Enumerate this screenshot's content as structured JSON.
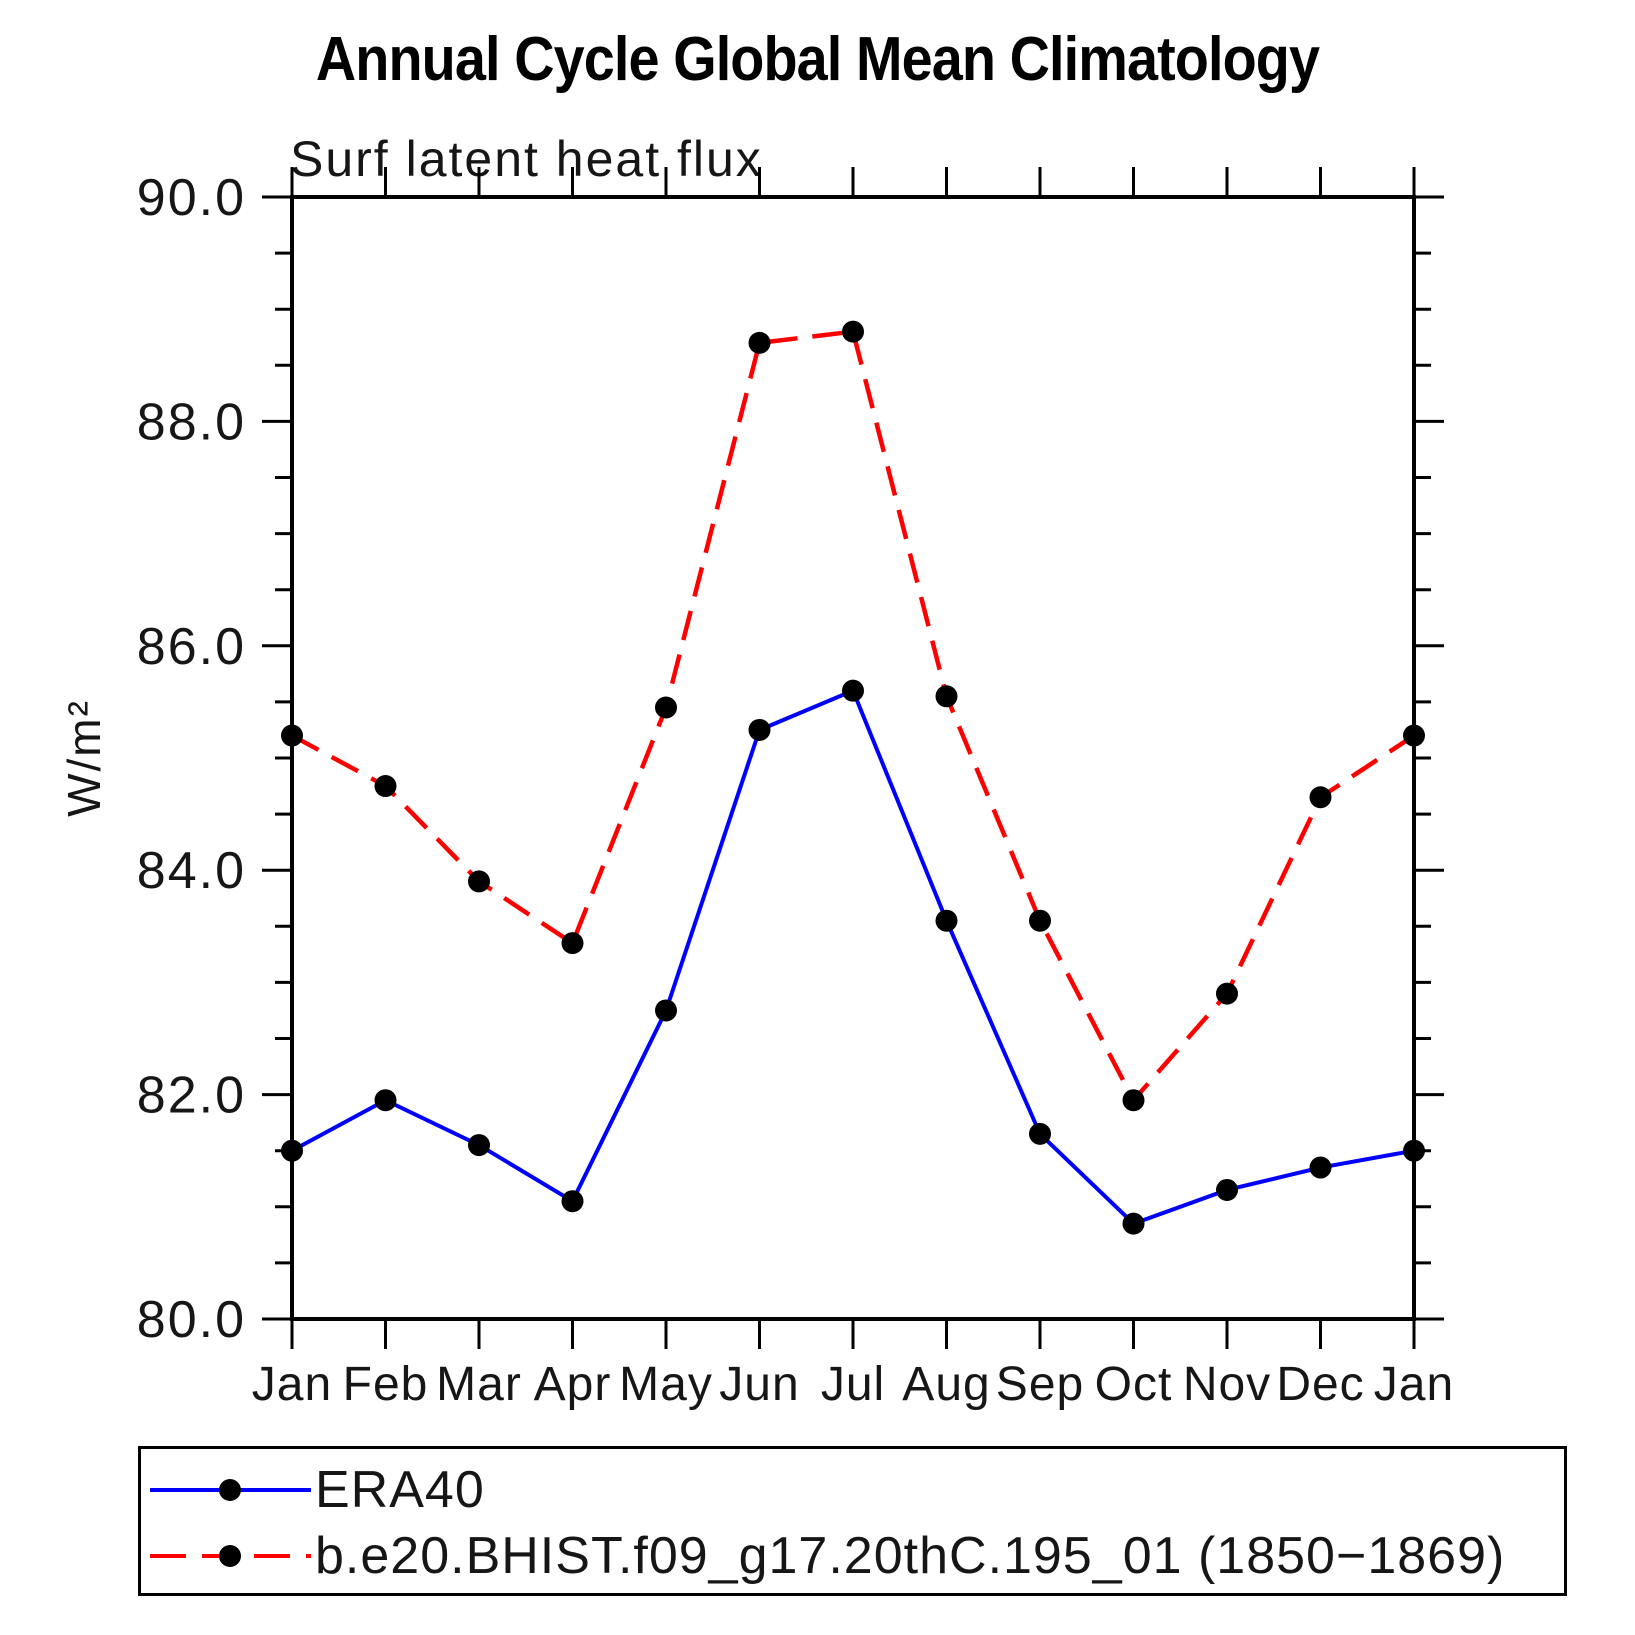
{
  "chart_data": {
    "type": "line",
    "title": "Annual Cycle Global Mean Climatology",
    "subtitle": "Surf latent heat flux",
    "ylabel": "W/m²",
    "xlabel": "",
    "categories": [
      "Jan",
      "Feb",
      "Mar",
      "Apr",
      "May",
      "Jun",
      "Jul",
      "Aug",
      "Sep",
      "Oct",
      "Nov",
      "Dec",
      "Jan"
    ],
    "ylim": [
      80.0,
      90.0
    ],
    "y_major_ticks": [
      90.0,
      88.0,
      86.0,
      84.0,
      82.0,
      80.0
    ],
    "y_minor_step": 0.5,
    "grid": false,
    "legend_position": "bottom",
    "axis_color": "#000000",
    "marker_color": "#000000",
    "series": [
      {
        "name": "ERA40",
        "color": "#0000ff",
        "style": "solid",
        "marker": "circle",
        "values": [
          81.5,
          81.95,
          81.55,
          81.05,
          82.75,
          85.25,
          85.6,
          83.55,
          81.65,
          80.85,
          81.15,
          81.35,
          81.5
        ]
      },
      {
        "name": "b.e20.BHIST.f09_g17.20thC.195_01 (1850−1869)",
        "color": "#ff0000",
        "style": "dashed",
        "marker": "circle",
        "values": [
          85.2,
          84.75,
          83.9,
          83.35,
          85.45,
          88.7,
          88.8,
          85.55,
          83.55,
          81.95,
          82.9,
          84.65,
          85.2
        ]
      }
    ]
  }
}
